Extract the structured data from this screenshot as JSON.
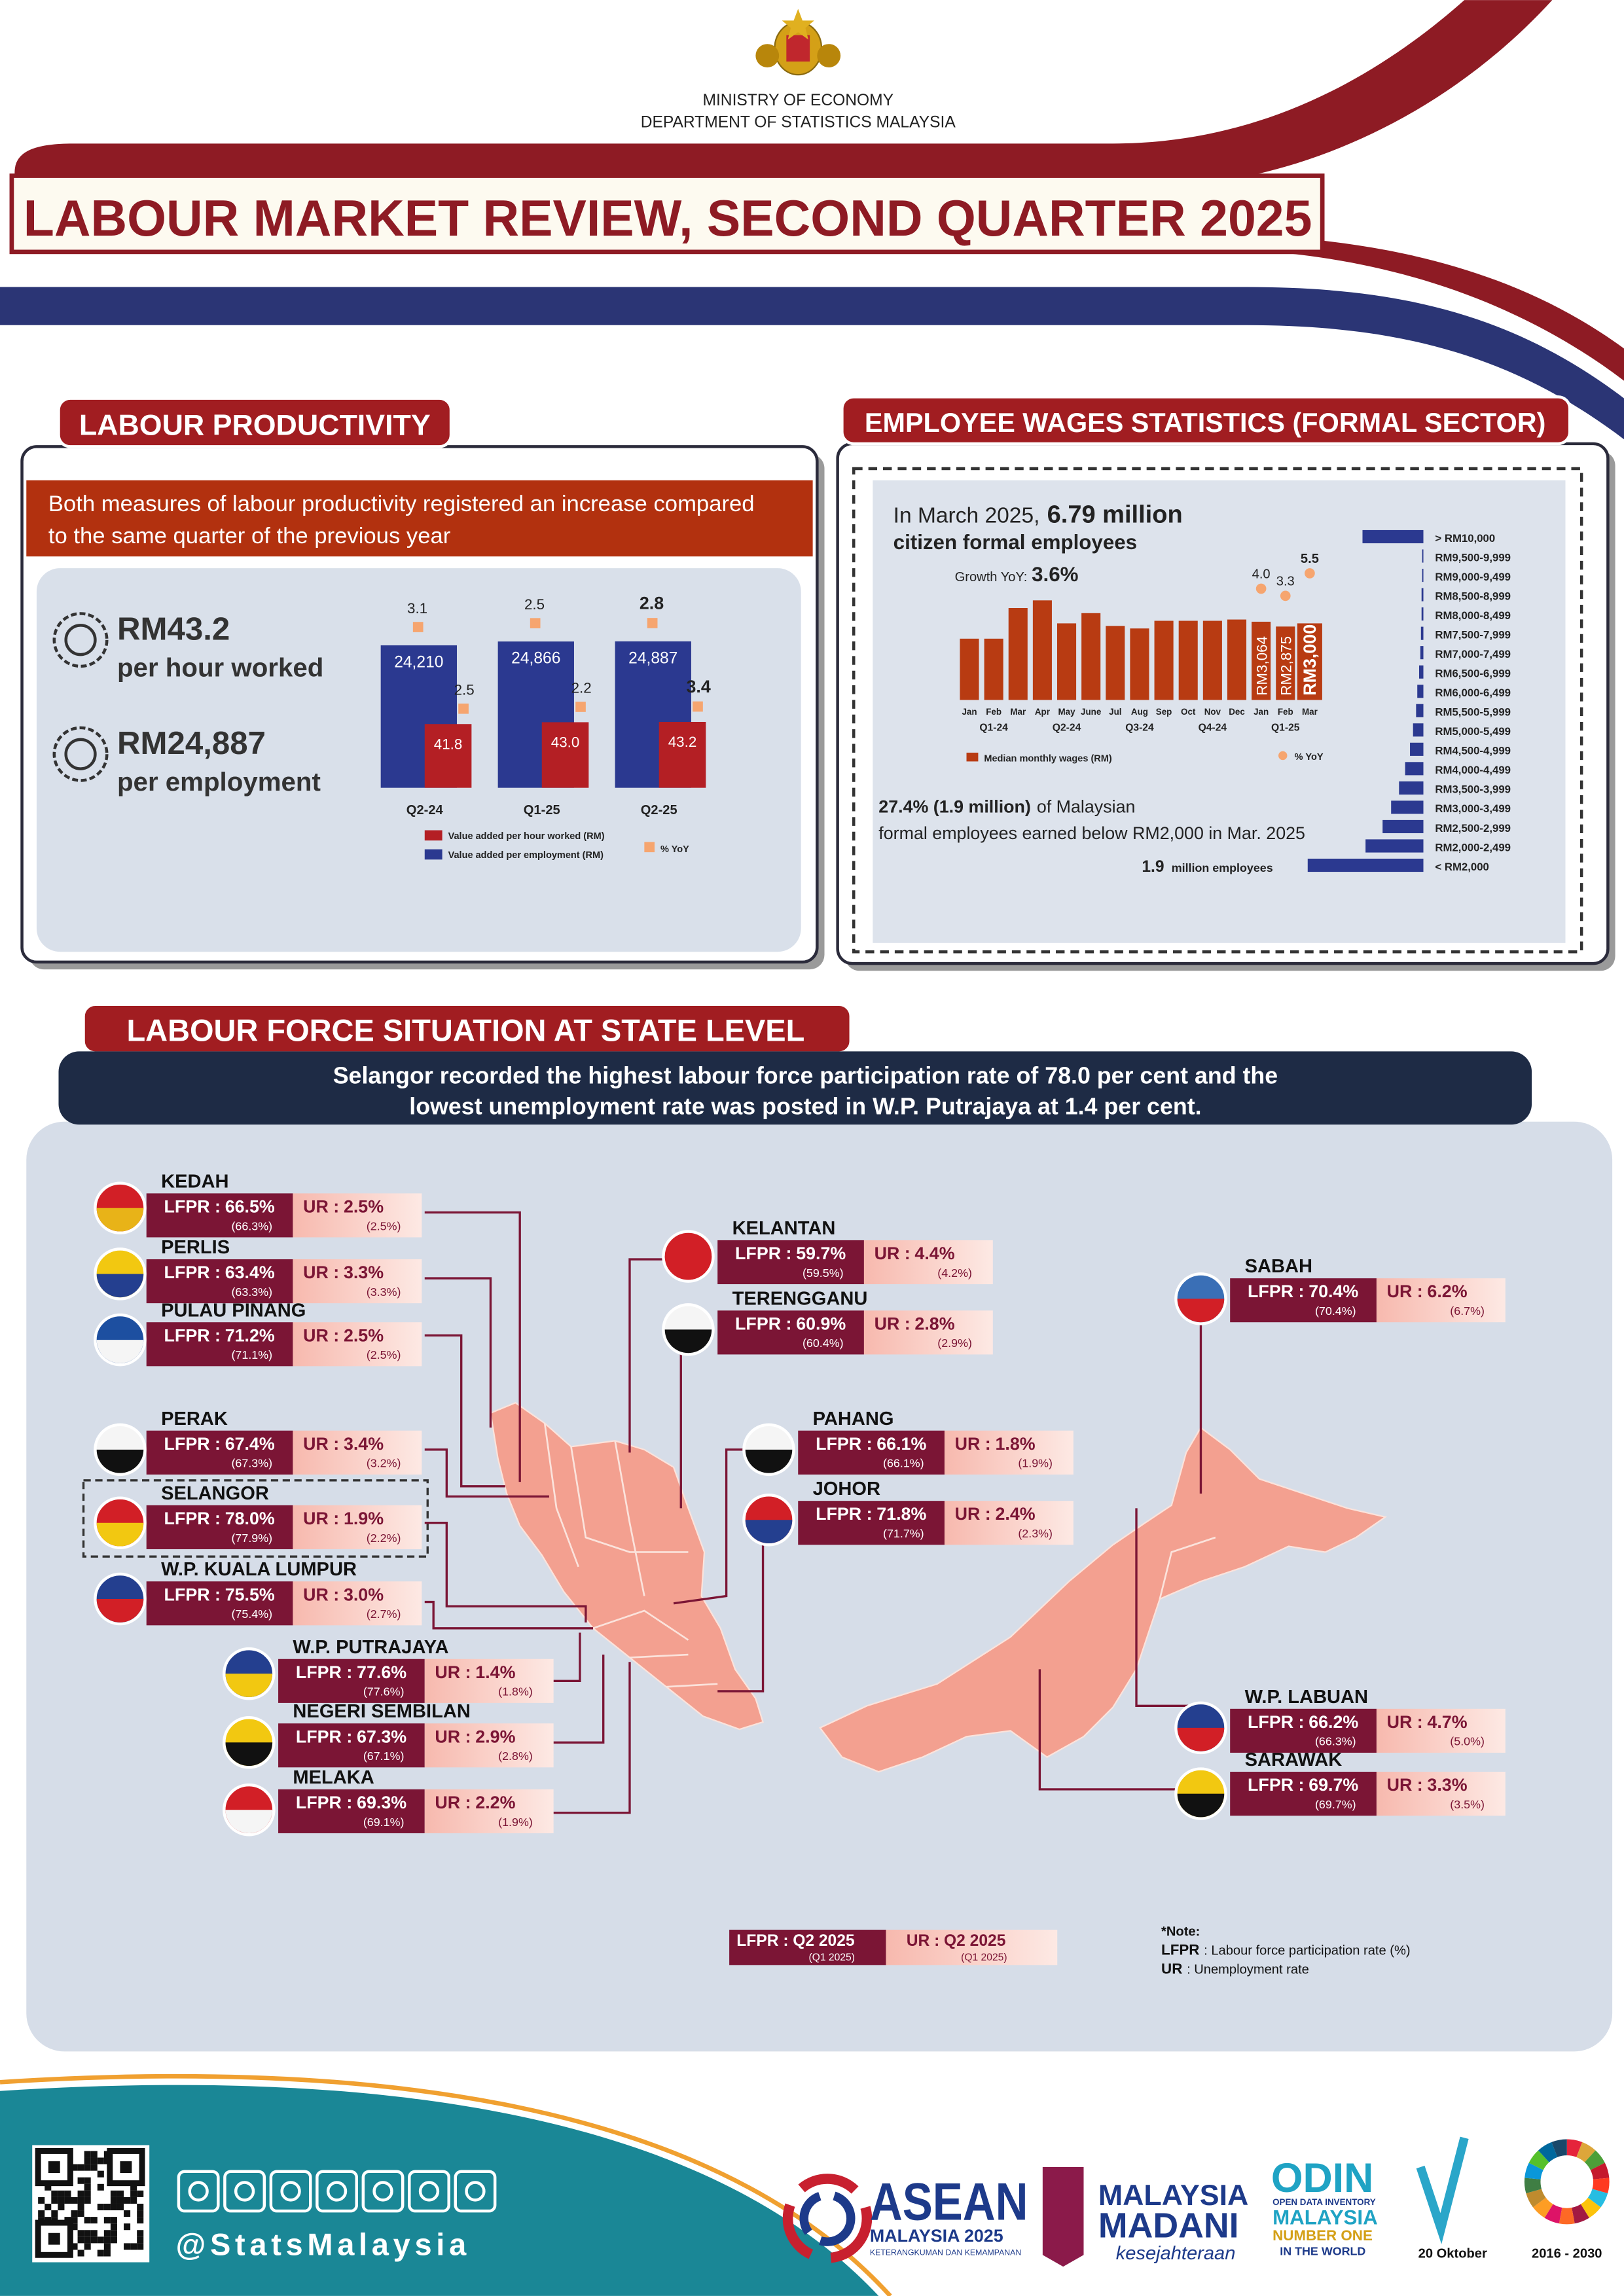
{
  "header": {
    "ministry": "MINISTRY OF ECONOMY",
    "department": "DEPARTMENT OF STATISTICS MALAYSIA",
    "title": "LABOUR MARKET REVIEW, SECOND QUARTER 2025"
  },
  "productivity": {
    "heading": "LABOUR PRODUCTIVITY",
    "summary": [
      "Both measures of labour productivity registered an increase compared",
      "to the same quarter of the previous year"
    ],
    "kpis": [
      {
        "value": "RM43.2",
        "label": "per hour worked"
      },
      {
        "value": "RM24,887",
        "label": "per employment"
      }
    ],
    "chart": {
      "type": "bar",
      "categories": [
        "Q2-24",
        "Q1-25",
        "Q2-25"
      ],
      "series": [
        {
          "name": "Value added per employment (RM)",
          "color": "#2b3990",
          "values": [
            24210,
            24866,
            24887
          ],
          "value_labels": [
            "24,210",
            "24,866",
            "24,887"
          ],
          "yoy": [
            3.1,
            2.5,
            2.8
          ]
        },
        {
          "name": "Value added per hour worked (RM)",
          "color": "#b41f24",
          "values": [
            41.8,
            43.0,
            43.2
          ],
          "value_labels": [
            "41.8",
            "43.0",
            "43.2"
          ],
          "yoy": [
            2.5,
            2.2,
            3.4
          ]
        }
      ],
      "yoy_name": "% YoY",
      "yoy_color": "#f6a56f"
    }
  },
  "wages": {
    "heading": "EMPLOYEE WAGES STATISTICS (FORMAL SECTOR)",
    "intro": [
      "In March 2025,",
      "6.79 million",
      "citizen formal employees"
    ],
    "growth": [
      "Growth YoY:",
      "3.6%"
    ],
    "median_chart": {
      "type": "bar",
      "categories": [
        "Jan",
        "Feb",
        "Mar",
        "Apr",
        "May",
        "June",
        "Jul",
        "Aug",
        "Sep",
        "Oct",
        "Nov",
        "Dec",
        "Jan",
        "Feb",
        "Mar"
      ],
      "quarters": [
        "Q1-24",
        "Q2-24",
        "Q3-24",
        "Q4-24",
        "Q1-25"
      ],
      "series": [
        {
          "name": "Median monthly wages (RM)",
          "color": "#b83b12",
          "values": [
            2400,
            2400,
            3600,
            3900,
            3000,
            3400,
            2900,
            2800,
            3100,
            3100,
            3100,
            3150,
            3064,
            2875,
            3000
          ],
          "value_labels": [
            null,
            null,
            null,
            null,
            null,
            null,
            null,
            null,
            null,
            null,
            null,
            null,
            "RM3,064",
            "RM2,875",
            "RM3,000"
          ]
        },
        {
          "name": "% YoY",
          "type": "scatter",
          "color": "#f6a56f",
          "values": [
            null,
            null,
            null,
            null,
            null,
            null,
            null,
            null,
            null,
            null,
            null,
            null,
            4.0,
            3.3,
            5.5
          ],
          "value_labels": [
            null,
            null,
            null,
            null,
            null,
            null,
            null,
            null,
            null,
            null,
            null,
            null,
            "4.0",
            "3.3",
            "5.5"
          ]
        }
      ]
    },
    "note": [
      "27.4% (1.9 million)",
      "of Malaysian",
      "formal employees earned below RM2,000 in Mar. 2025"
    ],
    "distribution": {
      "type": "bar",
      "orientation": "horizontal",
      "color": "#2b3990",
      "categories": [
        "> RM10,000",
        "RM9,500-9,999",
        "RM9,000-9,499",
        "RM8,500-8,999",
        "RM8,000-8,499",
        "RM7,500-7,999",
        "RM7,000-7,499",
        "RM6,500-6,999",
        "RM6,000-6,499",
        "RM5,500-5,999",
        "RM5,000-5,499",
        "RM4,500-4,999",
        "RM4,000-4,499",
        "RM3,500-3,999",
        "RM3,000-3,499",
        "RM2,500-2,999",
        "RM2,000-2,499",
        "< RM2,000"
      ],
      "values": [
        1.0,
        0.02,
        0.02,
        0.03,
        0.03,
        0.04,
        0.05,
        0.07,
        0.1,
        0.12,
        0.17,
        0.22,
        0.3,
        0.4,
        0.53,
        0.67,
        0.95,
        1.9
      ],
      "unit_label": "million employees"
    }
  },
  "states": {
    "heading": "LABOUR FORCE SITUATION AT STATE LEVEL",
    "summary": [
      "Selangor recorded the highest labour force participation rate of 78.0 per cent and the",
      "lowest unemployment rate was posted in W.P. Putrajaya at 1.4 per cent."
    ],
    "lfpr_label": "LFPR :",
    "ur_label": "UR :",
    "items": [
      {
        "name": "KEDAH",
        "lfpr": "66.5%",
        "lfpr_prev": "(66.3%)",
        "ur": "2.5%",
        "ur_prev": "(2.5%)"
      },
      {
        "name": "PERLIS",
        "lfpr": "63.4%",
        "lfpr_prev": "(63.3%)",
        "ur": "3.3%",
        "ur_prev": "(3.3%)"
      },
      {
        "name": "PULAU PINANG",
        "lfpr": "71.2%",
        "lfpr_prev": "(71.1%)",
        "ur": "2.5%",
        "ur_prev": "(2.5%)"
      },
      {
        "name": "PERAK",
        "lfpr": "67.4%",
        "lfpr_prev": "(67.3%)",
        "ur": "3.4%",
        "ur_prev": "(3.2%)"
      },
      {
        "name": "SELANGOR",
        "lfpr": "78.0%",
        "lfpr_prev": "(77.9%)",
        "ur": "1.9%",
        "ur_prev": "(2.2%)"
      },
      {
        "name": "W.P. KUALA LUMPUR",
        "lfpr": "75.5%",
        "lfpr_prev": "(75.4%)",
        "ur": "3.0%",
        "ur_prev": "(2.7%)"
      },
      {
        "name": "W.P. PUTRAJAYA",
        "lfpr": "77.6%",
        "lfpr_prev": "(77.6%)",
        "ur": "1.4%",
        "ur_prev": "(1.8%)"
      },
      {
        "name": "NEGERI SEMBILAN",
        "lfpr": "67.3%",
        "lfpr_prev": "(67.1%)",
        "ur": "2.9%",
        "ur_prev": "(2.8%)"
      },
      {
        "name": "MELAKA",
        "lfpr": "69.3%",
        "lfpr_prev": "(69.1%)",
        "ur": "2.2%",
        "ur_prev": "(1.9%)"
      },
      {
        "name": "KELANTAN",
        "lfpr": "59.7%",
        "lfpr_prev": "(59.5%)",
        "ur": "4.4%",
        "ur_prev": "(4.2%)"
      },
      {
        "name": "TERENGGANU",
        "lfpr": "60.9%",
        "lfpr_prev": "(60.4%)",
        "ur": "2.8%",
        "ur_prev": "(2.9%)"
      },
      {
        "name": "PAHANG",
        "lfpr": "66.1%",
        "lfpr_prev": "(66.1%)",
        "ur": "1.8%",
        "ur_prev": "(1.9%)"
      },
      {
        "name": "JOHOR",
        "lfpr": "71.8%",
        "lfpr_prev": "(71.7%)",
        "ur": "2.4%",
        "ur_prev": "(2.3%)"
      },
      {
        "name": "SABAH",
        "lfpr": "70.4%",
        "lfpr_prev": "(70.4%)",
        "ur": "6.2%",
        "ur_prev": "(6.7%)"
      },
      {
        "name": "W.P. LABUAN",
        "lfpr": "66.2%",
        "lfpr_prev": "(66.3%)",
        "ur": "4.7%",
        "ur_prev": "(5.0%)"
      },
      {
        "name": "SARAWAK",
        "lfpr": "69.7%",
        "lfpr_prev": "(69.7%)",
        "ur": "3.3%",
        "ur_prev": "(3.5%)"
      }
    ],
    "legend": {
      "current": "Q2 2025",
      "previous": "(Q1 2025)"
    },
    "note": {
      "title": "*Note:",
      "items": [
        {
          "abbr": "LFPR",
          "text": ": Labour force participation rate (%)"
        },
        {
          "abbr": "UR",
          "text": ": Unemployment rate"
        }
      ]
    }
  },
  "footer": {
    "handle": "@StatsMalaysia",
    "asean": [
      "ASEAN",
      "MALAYSIA 2025",
      "KETERANGKUMAN DAN KEMAMPANAN"
    ],
    "madani": [
      "MALAYSIA",
      "MADANI",
      "kesejahteraan"
    ],
    "odin": [
      "ODIN",
      "OPEN DATA INVENTORY",
      "MALAYSIA",
      "NUMBER ONE",
      "IN THE WORLD"
    ],
    "day": "20 Oktober",
    "sdg": "2016 - 2030"
  }
}
